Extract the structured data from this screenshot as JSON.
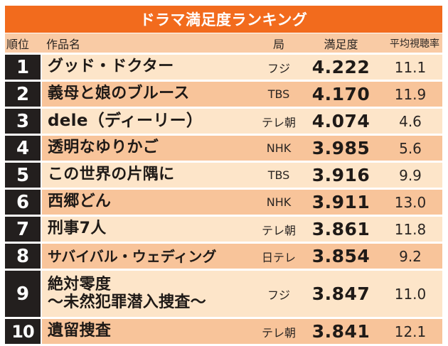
{
  "title": "ドラマ満足度ランキング",
  "colors": {
    "title_bar": "#f26b1d",
    "header_row": "#f9cba5",
    "row_light": "#fde5c9",
    "row_dark": "#f8c49a",
    "rank_box": "#231f1e"
  },
  "columns": {
    "rank": "順位",
    "title": "作品名",
    "station": "局",
    "score": "満足度",
    "rating": "平均視聴率"
  },
  "rows": [
    {
      "rank": "1",
      "title": "グッド・ドクター",
      "station": "フジ",
      "score": "4.222",
      "rating": "11.1"
    },
    {
      "rank": "2",
      "title": "義母と娘のブルース",
      "station": "TBS",
      "score": "4.170",
      "rating": "11.9"
    },
    {
      "rank": "3",
      "title": "dele（ディーリー）",
      "station": "テレ朝",
      "score": "4.074",
      "rating": "4.6"
    },
    {
      "rank": "4",
      "title": "透明なゆりかご",
      "station": "NHK",
      "score": "3.985",
      "rating": "5.6"
    },
    {
      "rank": "5",
      "title": "この世界の片隅に",
      "station": "TBS",
      "score": "3.916",
      "rating": "9.9"
    },
    {
      "rank": "6",
      "title": "西郷どん",
      "station": "NHK",
      "score": "3.911",
      "rating": "13.0"
    },
    {
      "rank": "7",
      "title": "刑事7人",
      "station": "テレ朝",
      "score": "3.861",
      "rating": "11.8"
    },
    {
      "rank": "8",
      "title": "サバイバル・ウェディング",
      "station": "日テレ",
      "score": "3.854",
      "rating": "9.2"
    },
    {
      "rank": "9",
      "title_line1": "絶対零度",
      "title_line2": "〜未然犯罪潜入捜査〜",
      "station": "フジ",
      "score": "3.847",
      "rating": "11.0"
    },
    {
      "rank": "10",
      "title": "遺留捜査",
      "station": "テレ朝",
      "score": "3.841",
      "rating": "12.1"
    }
  ]
}
